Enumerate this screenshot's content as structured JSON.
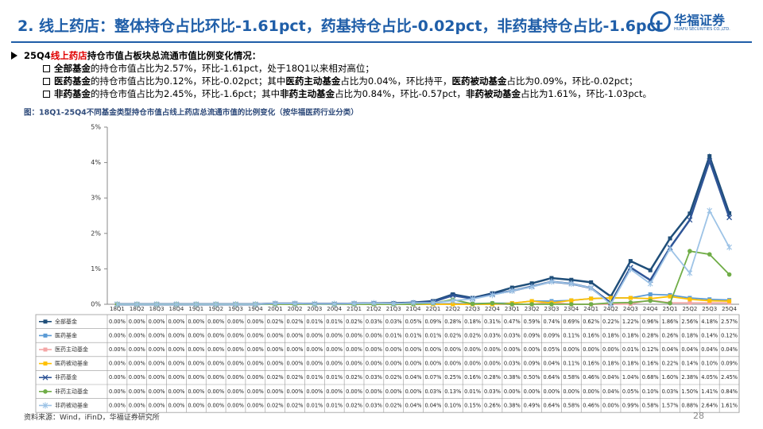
{
  "header": {
    "title": "2. 线上药店：整体持仓占比环比-1.61pct，药基持仓占比-0.02pct，非药基持仓占比-1.6pct",
    "logo_name": "华福证券",
    "logo_en": "HUAFU SECURITIES CO.,LTD."
  },
  "bullets": [
    [
      {
        "text": "25Q4",
        "bold": true
      },
      {
        "text": "线上药店",
        "bold": true,
        "color": "#e00000"
      },
      {
        "text": "持仓市值占板块总流通市值比例变化情况：",
        "bold": true
      }
    ],
    [
      {
        "text": "全部基金",
        "bold": true
      },
      {
        "text": "的持仓市值占比为2.57%，环比-1.61pct，处于18Q1以来相对高位；"
      }
    ],
    [
      {
        "text": "医药基金",
        "bold": true
      },
      {
        "text": "的持仓市值占比为0.12%，环比-0.02pct；其中"
      },
      {
        "text": "医药主动基金",
        "bold": true
      },
      {
        "text": "占比为0.04%，环比持平，"
      },
      {
        "text": "医药被动基金",
        "bold": true
      },
      {
        "text": "占比为0.09%，环比-0.02pct；"
      }
    ],
    [
      {
        "text": "非药基金",
        "bold": true
      },
      {
        "text": "的持仓市值占比为2.45%，环比-1.6pct；其中"
      },
      {
        "text": "非药主动基金",
        "bold": true
      },
      {
        "text": "占比为0.84%，环比-0.57pct，"
      },
      {
        "text": "非药被动基金",
        "bold": true
      },
      {
        "text": "占比为1.61%，环比-1.03pct。"
      }
    ]
  ],
  "chart_data": {
    "type": "line",
    "title": "图：18Q1-25Q4不同基金类型持仓市值占线上药店总流通市值的比例变化（按华福医药行业分类）",
    "categories": [
      "18Q1",
      "18Q2",
      "18Q3",
      "18Q4",
      "19Q1",
      "19Q2",
      "19Q3",
      "19Q4",
      "20Q1",
      "20Q2",
      "20Q3",
      "20Q4",
      "21Q1",
      "21Q2",
      "21Q3",
      "21Q4",
      "22Q1",
      "22Q2",
      "22Q3",
      "22Q4",
      "23Q1",
      "23Q2",
      "23Q3",
      "23Q4",
      "24Q1",
      "24Q2",
      "24Q3",
      "24Q4",
      "25Q1",
      "25Q2",
      "25Q3",
      "25Q4"
    ],
    "ylim": [
      0,
      5
    ],
    "yticks": [
      {
        "value": 0,
        "label": "0%"
      },
      {
        "value": 1,
        "label": "1%"
      },
      {
        "value": 2,
        "label": "2%"
      },
      {
        "value": 3,
        "label": "3%"
      },
      {
        "value": 4,
        "label": "4%"
      },
      {
        "value": 5,
        "label": "5%"
      }
    ],
    "series": [
      {
        "name": "全部基金",
        "color": "#1f4e79",
        "marker": "square",
        "values": [
          0,
          0,
          0,
          0,
          0,
          0,
          0,
          0,
          0.02,
          0.02,
          0.01,
          0.01,
          0.02,
          0.03,
          0.03,
          0.05,
          0.09,
          0.28,
          0.18,
          0.31,
          0.47,
          0.59,
          0.74,
          0.69,
          0.62,
          0.22,
          1.22,
          0.96,
          1.86,
          2.56,
          4.18,
          2.57
        ],
        "value_labels": [
          "0.00%",
          "0.00%",
          "0.00%",
          "0.00%",
          "0.00%",
          "0.00%",
          "0.00%",
          "0.00%",
          "0.02%",
          "0.02%",
          "0.01%",
          "0.01%",
          "0.02%",
          "0.03%",
          "0.03%",
          "0.05%",
          "0.09%",
          "0.28%",
          "0.18%",
          "0.31%",
          "0.47%",
          "0.59%",
          "0.74%",
          "0.69%",
          "0.62%",
          "0.22%",
          "1.22%",
          "0.96%",
          "1.86%",
          "2.56%",
          "4.18%",
          "2.57%"
        ]
      },
      {
        "name": "医药基金",
        "color": "#5b9bd5",
        "marker": "square",
        "values": [
          0,
          0,
          0,
          0,
          0,
          0,
          0,
          0,
          0,
          0,
          0,
          0,
          0,
          0,
          0.01,
          0.01,
          0.01,
          0.02,
          0.02,
          0.03,
          0.03,
          0.09,
          0.09,
          0.11,
          0.16,
          0.18,
          0.18,
          0.28,
          0.26,
          0.18,
          0.14,
          0.12
        ],
        "value_labels": [
          "0.00%",
          "0.00%",
          "0.00%",
          "0.00%",
          "0.00%",
          "0.00%",
          "0.00%",
          "0.00%",
          "0.00%",
          "0.00%",
          "0.00%",
          "0.00%",
          "0.00%",
          "0.00%",
          "0.01%",
          "0.01%",
          "0.01%",
          "0.02%",
          "0.02%",
          "0.03%",
          "0.03%",
          "0.09%",
          "0.09%",
          "0.11%",
          "0.16%",
          "0.18%",
          "0.18%",
          "0.28%",
          "0.26%",
          "0.18%",
          "0.14%",
          "0.12%"
        ]
      },
      {
        "name": "医药主动基金",
        "color": "#f4a6a6",
        "marker": "square",
        "values": [
          0,
          0,
          0,
          0,
          0,
          0,
          0,
          0,
          0,
          0,
          0,
          0,
          0,
          0,
          0,
          0,
          0,
          0,
          0,
          0,
          0,
          0,
          0.05,
          0,
          0,
          0,
          0.01,
          0.12,
          0.04,
          0.04,
          0.04,
          0.04
        ],
        "value_labels": [
          "0.00%",
          "0.00%",
          "0.00%",
          "0.00%",
          "0.00%",
          "0.00%",
          "0.00%",
          "0.00%",
          "0.00%",
          "0.00%",
          "0.00%",
          "0.00%",
          "0.00%",
          "0.00%",
          "0.00%",
          "0.00%",
          "0.00%",
          "0.00%",
          "0.00%",
          "0.00%",
          "0.00%",
          "0.00%",
          "0.05%",
          "0.00%",
          "0.00%",
          "0.00%",
          "0.01%",
          "0.12%",
          "0.04%",
          "0.04%",
          "0.04%",
          "0.04%"
        ]
      },
      {
        "name": "医药被动基金",
        "color": "#ffc000",
        "marker": "square",
        "values": [
          0,
          0,
          0,
          0,
          0,
          0,
          0,
          0,
          0,
          0,
          0,
          0,
          0,
          0,
          0,
          0,
          0,
          0,
          0,
          0,
          0.03,
          0.09,
          0.04,
          0.11,
          0.16,
          0.18,
          0.18,
          0.16,
          0.22,
          0.14,
          0.1,
          0.09
        ],
        "value_labels": [
          "0.00%",
          "0.00%",
          "0.00%",
          "0.00%",
          "0.00%",
          "0.00%",
          "0.00%",
          "0.00%",
          "0.00%",
          "0.00%",
          "0.00%",
          "0.00%",
          "0.00%",
          "0.00%",
          "0.00%",
          "0.00%",
          "0.00%",
          "0.00%",
          "0.00%",
          "0.00%",
          "0.03%",
          "0.09%",
          "0.04%",
          "0.11%",
          "0.16%",
          "0.18%",
          "0.18%",
          "0.16%",
          "0.22%",
          "0.14%",
          "0.10%",
          "0.09%"
        ]
      },
      {
        "name": "非药基金",
        "color": "#2f5597",
        "marker": "x",
        "values": [
          0,
          0,
          0,
          0,
          0,
          0,
          0,
          0,
          0.02,
          0.02,
          0.01,
          0.01,
          0.02,
          0.03,
          0.02,
          0.04,
          0.07,
          0.25,
          0.16,
          0.28,
          0.38,
          0.5,
          0.64,
          0.58,
          0.46,
          0.04,
          1.04,
          0.68,
          1.6,
          2.38,
          4.05,
          2.45
        ],
        "value_labels": [
          "0.00%",
          "0.00%",
          "0.00%",
          "0.00%",
          "0.00%",
          "0.00%",
          "0.00%",
          "0.00%",
          "0.02%",
          "0.02%",
          "0.01%",
          "0.01%",
          "0.02%",
          "0.03%",
          "0.02%",
          "0.04%",
          "0.07%",
          "0.25%",
          "0.16%",
          "0.28%",
          "0.38%",
          "0.50%",
          "0.64%",
          "0.58%",
          "0.46%",
          "0.04%",
          "1.04%",
          "0.68%",
          "1.60%",
          "2.38%",
          "4.05%",
          "2.45%"
        ]
      },
      {
        "name": "非药主动基金",
        "color": "#70ad47",
        "marker": "circle",
        "values": [
          0,
          0,
          0,
          0,
          0,
          0,
          0,
          0,
          0,
          0,
          0,
          0,
          0,
          0,
          0,
          0,
          0.03,
          0.13,
          0.01,
          0.03,
          0,
          0,
          0,
          0,
          0,
          0.04,
          0.05,
          0.1,
          0.03,
          1.5,
          1.41,
          0.84
        ],
        "value_labels": [
          "0.00%",
          "0.00%",
          "0.00%",
          "0.00%",
          "0.00%",
          "0.00%",
          "0.00%",
          "0.00%",
          "0.00%",
          "0.00%",
          "0.00%",
          "0.00%",
          "0.00%",
          "0.00%",
          "0.00%",
          "0.00%",
          "0.03%",
          "0.13%",
          "0.01%",
          "0.03%",
          "0.00%",
          "0.00%",
          "0.00%",
          "0.00%",
          "0.00%",
          "0.04%",
          "0.05%",
          "0.10%",
          "0.03%",
          "1.50%",
          "1.41%",
          "0.84%"
        ]
      },
      {
        "name": "非药被动基金",
        "color": "#9dc3e6",
        "marker": "star",
        "values": [
          0,
          0,
          0,
          0,
          0,
          0,
          0,
          0,
          0.02,
          0.02,
          0.01,
          0.01,
          0.02,
          0.03,
          0.02,
          0.04,
          0.04,
          0.1,
          0.15,
          0.26,
          0.38,
          0.49,
          0.64,
          0.58,
          0.46,
          0,
          0.99,
          0.58,
          1.57,
          0.88,
          2.64,
          1.61
        ],
        "value_labels": [
          "0.00%",
          "0.00%",
          "0.00%",
          "0.00%",
          "0.00%",
          "0.00%",
          "0.00%",
          "0.00%",
          "0.02%",
          "0.02%",
          "0.01%",
          "0.01%",
          "0.02%",
          "0.03%",
          "0.02%",
          "0.04%",
          "0.04%",
          "0.10%",
          "0.15%",
          "0.26%",
          "0.38%",
          "0.49%",
          "0.64%",
          "0.58%",
          "0.46%",
          "0.00%",
          "0.99%",
          "0.58%",
          "1.57%",
          "0.88%",
          "2.64%",
          "1.61%"
        ]
      }
    ]
  },
  "source": "资料来源：Wind，iFinD，华福证券研究所",
  "page_number": "28"
}
